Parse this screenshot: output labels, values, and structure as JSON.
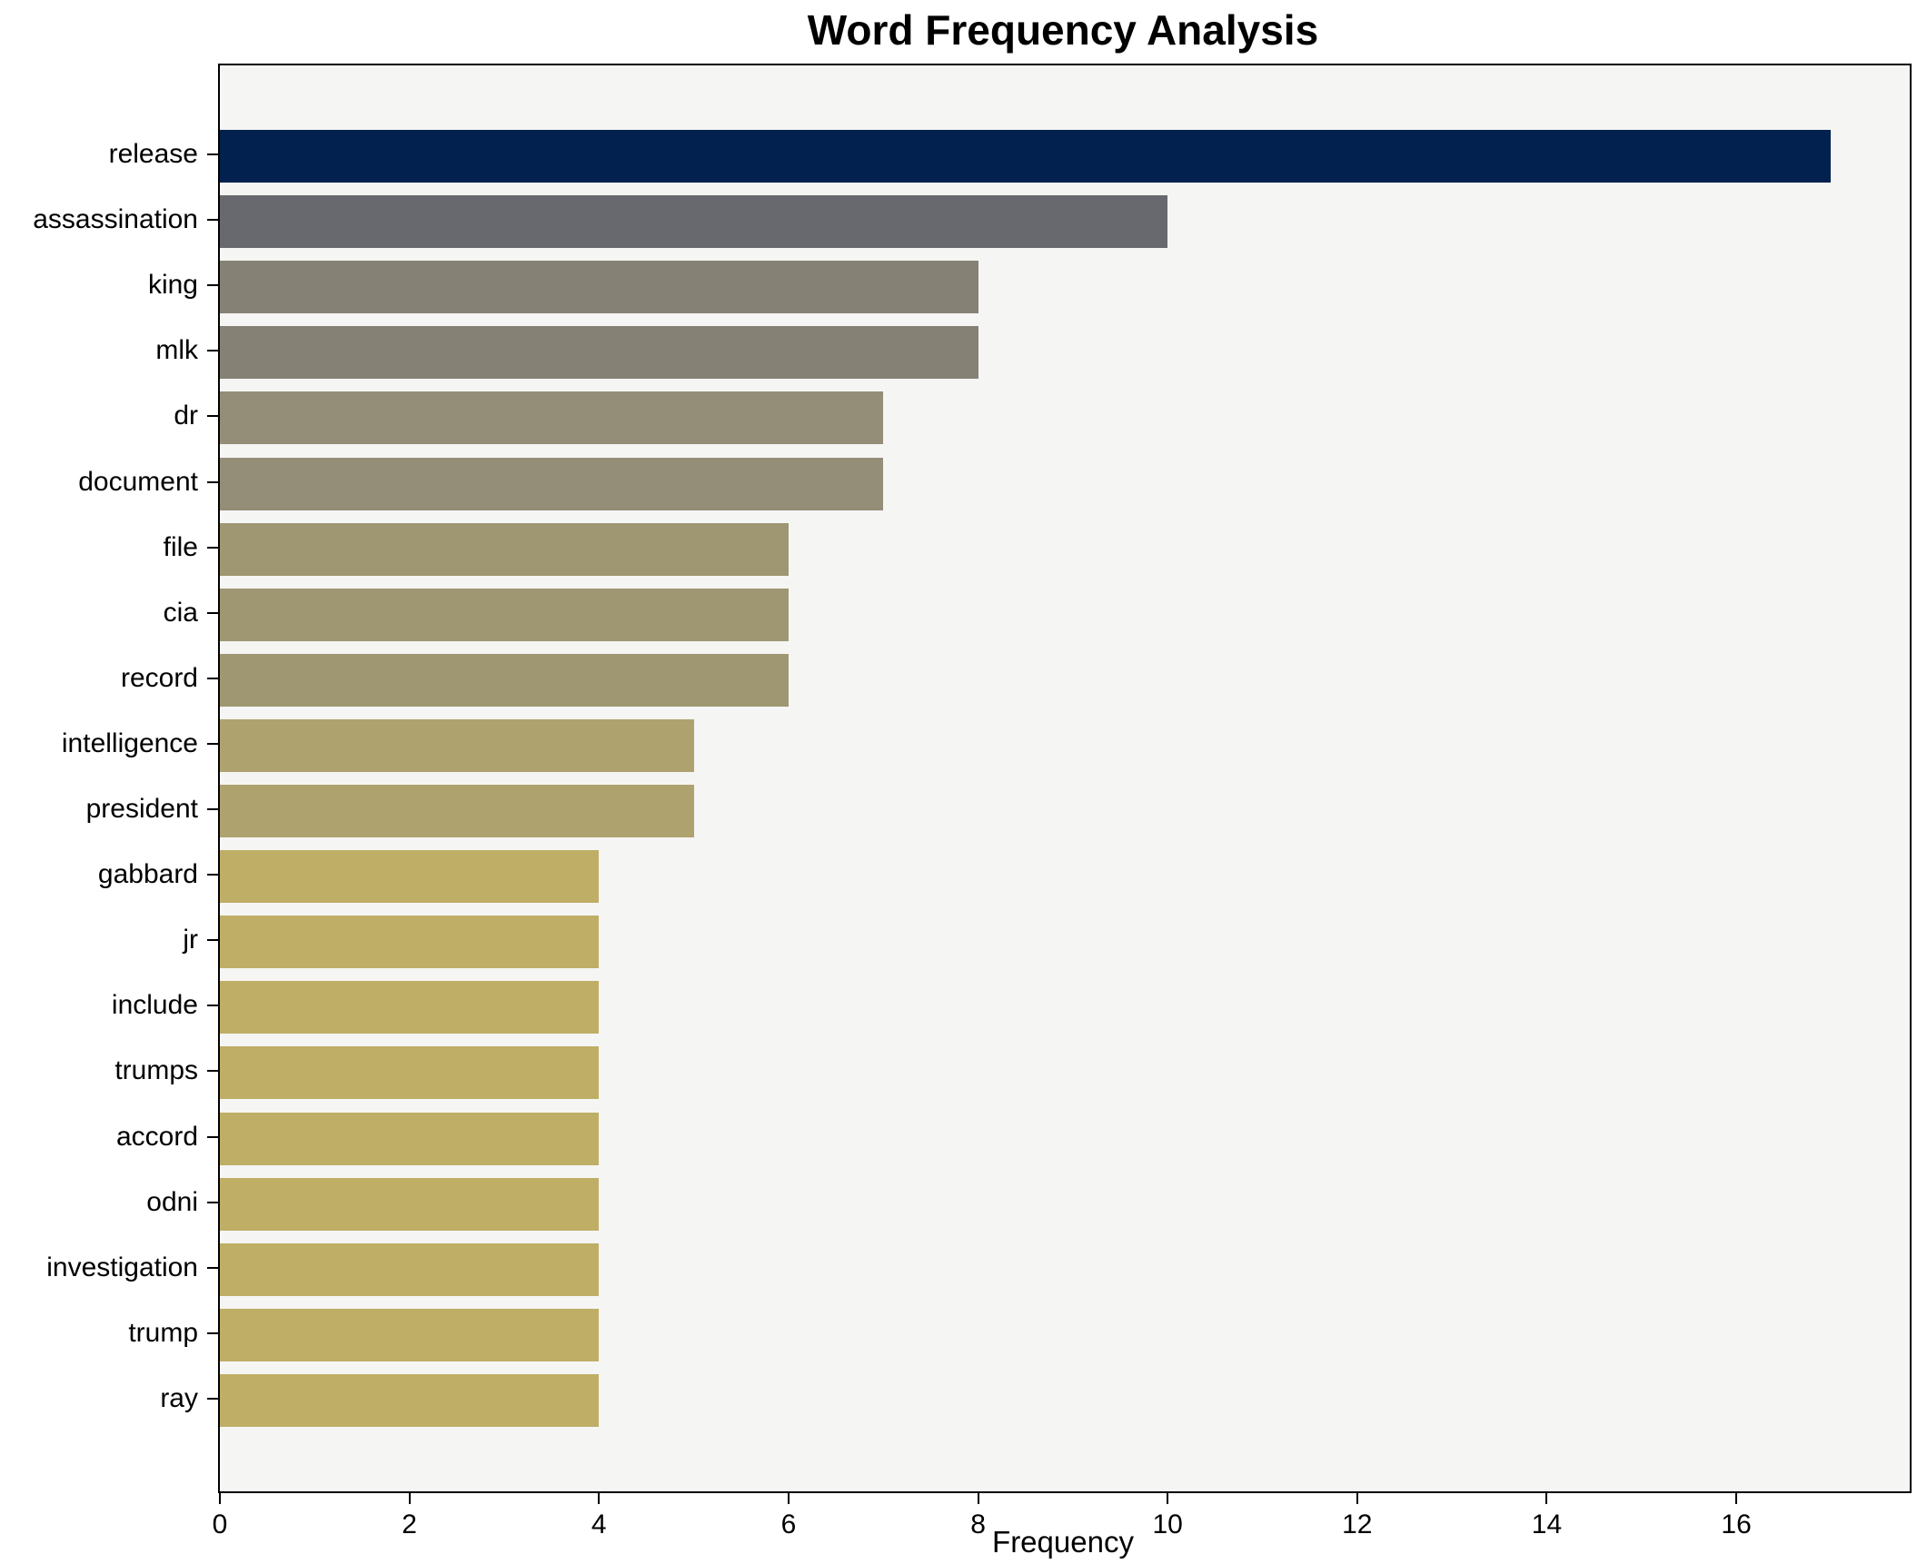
{
  "figure": {
    "title": "Word Frequency Analysis",
    "xlabel": "Frequency"
  },
  "chart_data": {
    "type": "bar",
    "orientation": "horizontal",
    "title": "Word Frequency Analysis",
    "xlabel": "Frequency",
    "ylabel": "",
    "categories": [
      "release",
      "assassination",
      "king",
      "mlk",
      "dr",
      "document",
      "file",
      "cia",
      "record",
      "intelligence",
      "president",
      "gabbard",
      "jr",
      "include",
      "trumps",
      "accord",
      "odni",
      "investigation",
      "trump",
      "ray"
    ],
    "values": [
      17,
      10,
      8,
      8,
      7,
      7,
      6,
      6,
      6,
      5,
      5,
      4,
      4,
      4,
      4,
      4,
      4,
      4,
      4,
      4
    ],
    "bar_colors": [
      "#02214f",
      "#68696f",
      "#858175",
      "#858175",
      "#948d78",
      "#948d78",
      "#9f9772",
      "#9f9772",
      "#9f9772",
      "#aea26f",
      "#aea26f",
      "#bfae66",
      "#bfae66",
      "#bfae66",
      "#bfae66",
      "#bfae66",
      "#bfae66",
      "#bfae66",
      "#bfae66",
      "#bfae66"
    ],
    "xlim": [
      0,
      17.83
    ],
    "x_ticks": [
      0,
      2,
      4,
      6,
      8,
      10,
      12,
      14,
      16
    ],
    "grid": false,
    "legend": null,
    "colormap": "cividis",
    "plot_background": "#f5f5f4",
    "figure_background": "#ffffff",
    "spine_color": "#000000"
  }
}
